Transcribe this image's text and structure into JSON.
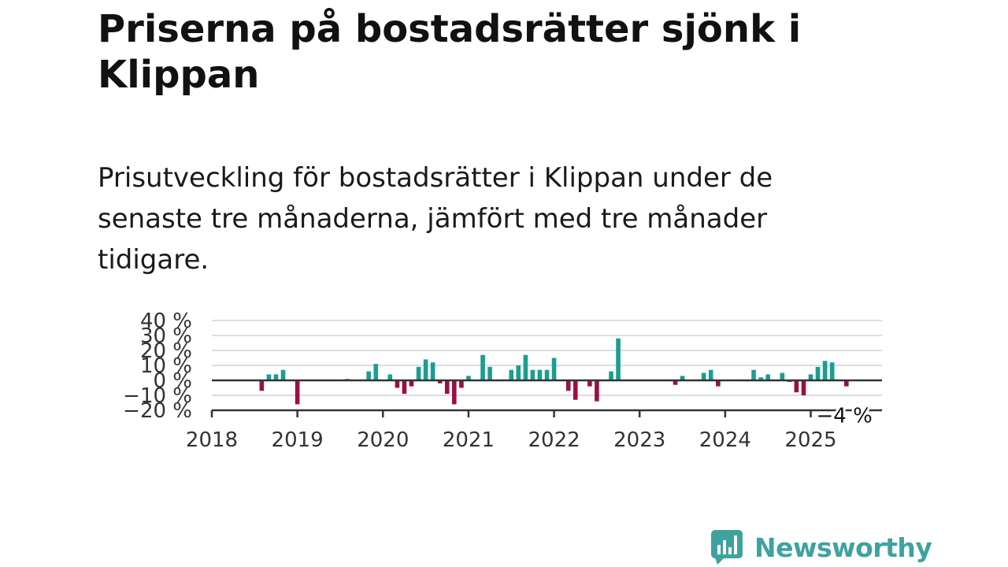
{
  "page": {
    "title": "Priserna på bostadsrätter sjönk i Klippan",
    "subtitle": "Prisutveckling för bostadsrätter i Klippan under de senaste tre månaderna, jämfört med tre månader tidigare."
  },
  "brand": {
    "name": "Newsworthy",
    "logo_icon": "bar-chart-speech-bubble-icon",
    "color": "#3ea3a0"
  },
  "colors": {
    "positive": "#1a9e92",
    "negative": "#9b0f45",
    "grid": "#dddddd",
    "axis": "#333333"
  },
  "chart_data": {
    "type": "bar",
    "ylim": [
      -20,
      40
    ],
    "yticks": [
      40,
      30,
      20,
      10,
      0,
      -10,
      -20
    ],
    "ytick_labels": [
      "40 %",
      "30 %",
      "20 %",
      "10 %",
      "0 %",
      "−10 %",
      "−20 %"
    ],
    "xlim": [
      2018.0,
      2025.833
    ],
    "xticks": [
      2018,
      2019,
      2020,
      2021,
      2022,
      2023,
      2024,
      2025
    ],
    "xtick_labels": [
      "2018",
      "2019",
      "2020",
      "2021",
      "2022",
      "2023",
      "2024",
      "2025"
    ],
    "grid": true,
    "annotation": {
      "text": "−4 %",
      "x": 2025.417,
      "y": -4
    },
    "points": [
      {
        "x": 2018.583,
        "y": -7
      },
      {
        "x": 2018.667,
        "y": 4
      },
      {
        "x": 2018.75,
        "y": 4
      },
      {
        "x": 2018.833,
        "y": 7
      },
      {
        "x": 2019.0,
        "y": -16
      },
      {
        "x": 2019.583,
        "y": 1
      },
      {
        "x": 2019.833,
        "y": 6
      },
      {
        "x": 2019.917,
        "y": 11
      },
      {
        "x": 2020.083,
        "y": 4
      },
      {
        "x": 2020.167,
        "y": -5
      },
      {
        "x": 2020.25,
        "y": -9
      },
      {
        "x": 2020.333,
        "y": -4
      },
      {
        "x": 2020.417,
        "y": 9
      },
      {
        "x": 2020.5,
        "y": 14
      },
      {
        "x": 2020.583,
        "y": 12
      },
      {
        "x": 2020.667,
        "y": -2
      },
      {
        "x": 2020.75,
        "y": -9
      },
      {
        "x": 2020.833,
        "y": -16
      },
      {
        "x": 2020.917,
        "y": -5
      },
      {
        "x": 2021.0,
        "y": 3
      },
      {
        "x": 2021.167,
        "y": 17
      },
      {
        "x": 2021.25,
        "y": 9
      },
      {
        "x": 2021.5,
        "y": 7
      },
      {
        "x": 2021.583,
        "y": 10
      },
      {
        "x": 2021.667,
        "y": 17
      },
      {
        "x": 2021.75,
        "y": 7
      },
      {
        "x": 2021.833,
        "y": 7
      },
      {
        "x": 2021.917,
        "y": 7
      },
      {
        "x": 2022.0,
        "y": 15
      },
      {
        "x": 2022.167,
        "y": -7
      },
      {
        "x": 2022.25,
        "y": -13
      },
      {
        "x": 2022.417,
        "y": -4
      },
      {
        "x": 2022.5,
        "y": -14
      },
      {
        "x": 2022.667,
        "y": 6
      },
      {
        "x": 2022.75,
        "y": 28
      },
      {
        "x": 2023.417,
        "y": -3
      },
      {
        "x": 2023.5,
        "y": 3
      },
      {
        "x": 2023.75,
        "y": 5
      },
      {
        "x": 2023.833,
        "y": 7
      },
      {
        "x": 2023.917,
        "y": -4
      },
      {
        "x": 2024.333,
        "y": 7
      },
      {
        "x": 2024.417,
        "y": 2
      },
      {
        "x": 2024.5,
        "y": 4
      },
      {
        "x": 2024.667,
        "y": 5
      },
      {
        "x": 2024.75,
        "y": -1
      },
      {
        "x": 2024.833,
        "y": -8
      },
      {
        "x": 2024.917,
        "y": -10
      },
      {
        "x": 2025.0,
        "y": 4
      },
      {
        "x": 2025.083,
        "y": 9
      },
      {
        "x": 2025.167,
        "y": 13
      },
      {
        "x": 2025.25,
        "y": 12
      },
      {
        "x": 2025.417,
        "y": -4
      }
    ]
  }
}
